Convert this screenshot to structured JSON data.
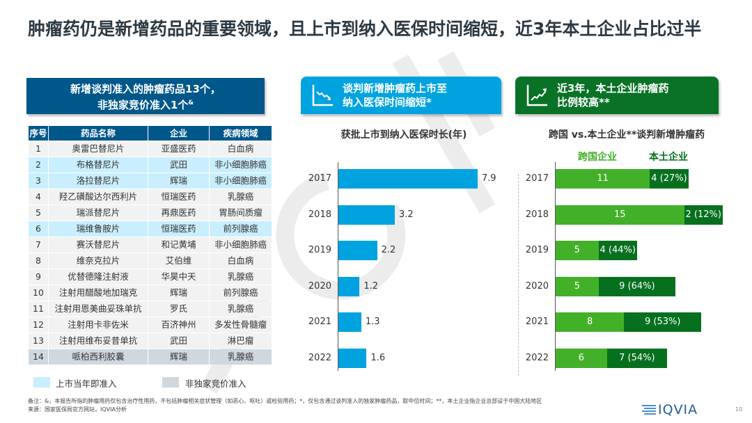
{
  "title": "肿瘤药仍是新增药品的重要领域，且上市到纳入医保时间缩短，近3年本土企业占比过半",
  "left_banner": {
    "line1": "新增谈判准入的肿瘤药品13个，",
    "line2": "非独家竞价准入1个",
    "sup": "&"
  },
  "mid_banner": {
    "line1": "谈判新增肿瘤药上市至",
    "line2": "纳入医保时间缩短*",
    "icon": "declining-chart-icon"
  },
  "right_banner": {
    "line1": "近3年，本土企业肿瘤药",
    "line2": "比例较高**",
    "icon": "rising-chart-icon"
  },
  "table": {
    "headers": [
      "序号",
      "药品名称",
      "企业",
      "疾病领域"
    ],
    "rows": [
      {
        "cells": [
          "1",
          "奥雷巴替尼片",
          "亚盛医药",
          "白血病"
        ],
        "tag": ""
      },
      {
        "cells": [
          "2",
          "布格替尼片",
          "武田",
          "非小细胞肺癌"
        ],
        "tag": "hl"
      },
      {
        "cells": [
          "3",
          "洛拉替尼片",
          "辉瑞",
          "非小细胞肺癌"
        ],
        "tag": "hl"
      },
      {
        "cells": [
          "4",
          "羟乙磺酸达尔西利片",
          "恒瑞医药",
          "乳腺癌"
        ],
        "tag": ""
      },
      {
        "cells": [
          "5",
          "瑞派替尼片",
          "再鼎医药",
          "胃肠间质瘤"
        ],
        "tag": ""
      },
      {
        "cells": [
          "6",
          "瑞维鲁胺片",
          "恒瑞医药",
          "前列腺癌"
        ],
        "tag": "hl"
      },
      {
        "cells": [
          "7",
          "赛沃替尼片",
          "和记黄埔",
          "非小细胞肺癌"
        ],
        "tag": ""
      },
      {
        "cells": [
          "8",
          "维奈克拉片",
          "艾伯维",
          "白血病"
        ],
        "tag": ""
      },
      {
        "cells": [
          "9",
          "优替德隆注射液",
          "华昊中天",
          "乳腺癌"
        ],
        "tag": ""
      },
      {
        "cells": [
          "10",
          "注射用醋酸地加瑞克",
          "辉瑞",
          "前列腺癌"
        ],
        "tag": ""
      },
      {
        "cells": [
          "11",
          "注射用恩美曲妥珠单抗",
          "罗氏",
          "乳腺癌"
        ],
        "tag": ""
      },
      {
        "cells": [
          "12",
          "注射用卡非佐米",
          "百济神州",
          "多发性骨髓瘤"
        ],
        "tag": ""
      },
      {
        "cells": [
          "13",
          "注射用维布妥昔单抗",
          "武田",
          "淋巴瘤"
        ],
        "tag": ""
      },
      {
        "cells": [
          "14",
          "哌柏西利胶囊",
          "辉瑞",
          "乳腺癌"
        ],
        "tag": "gr"
      }
    ],
    "legend": [
      {
        "label": "上市当年即准入",
        "color": "#c9efff"
      },
      {
        "label": "非独家竞价准入",
        "color": "#d0d8df"
      }
    ]
  },
  "chart_data": [
    {
      "type": "bar",
      "orientation": "horizontal",
      "title": "获批上市到纳入医保时长(年)",
      "categories": [
        "2017",
        "2018",
        "2019",
        "2020",
        "2021",
        "2022"
      ],
      "values": [
        7.9,
        3.2,
        2.2,
        1.2,
        1.3,
        1.6
      ],
      "color": "#00a3e0"
    },
    {
      "type": "bar",
      "orientation": "horizontal",
      "stacked": true,
      "title": "跨国 vs.本土企业**谈判新增肿瘤药",
      "categories": [
        "2017",
        "2018",
        "2019",
        "2020",
        "2021",
        "2022"
      ],
      "series": [
        {
          "name": "跨国企业",
          "values": [
            11,
            15,
            5,
            5,
            8,
            6
          ],
          "labels": [
            "11",
            "15",
            "5",
            "5",
            "8",
            "6"
          ],
          "color": "#43b02a"
        },
        {
          "name": "本土企业",
          "values": [
            4,
            2,
            4,
            9,
            9,
            7
          ],
          "labels": [
            "4 (27%)",
            "2 (12%)",
            "4 (44%)",
            "9 (64%)",
            "9 (53%)",
            "7 (54%)"
          ],
          "color": "#06701f"
        }
      ]
    }
  ],
  "footnote": {
    "line1": "备注：&，本报告所指的肿瘤用药仅包含治疗性用药，不包括肿瘤相关症状管理（如恶心、呕吐）或检验用药；*，仅包含通过谈判准入的独家肿瘤药品，取中位时间；**，本土企业指企业总部设于中国大陆地区",
    "line2": "来源：国家医保局官方网站，IQVIA分析"
  },
  "logo": "IQVIA",
  "watermark": "IQVIA",
  "page_number": "10"
}
